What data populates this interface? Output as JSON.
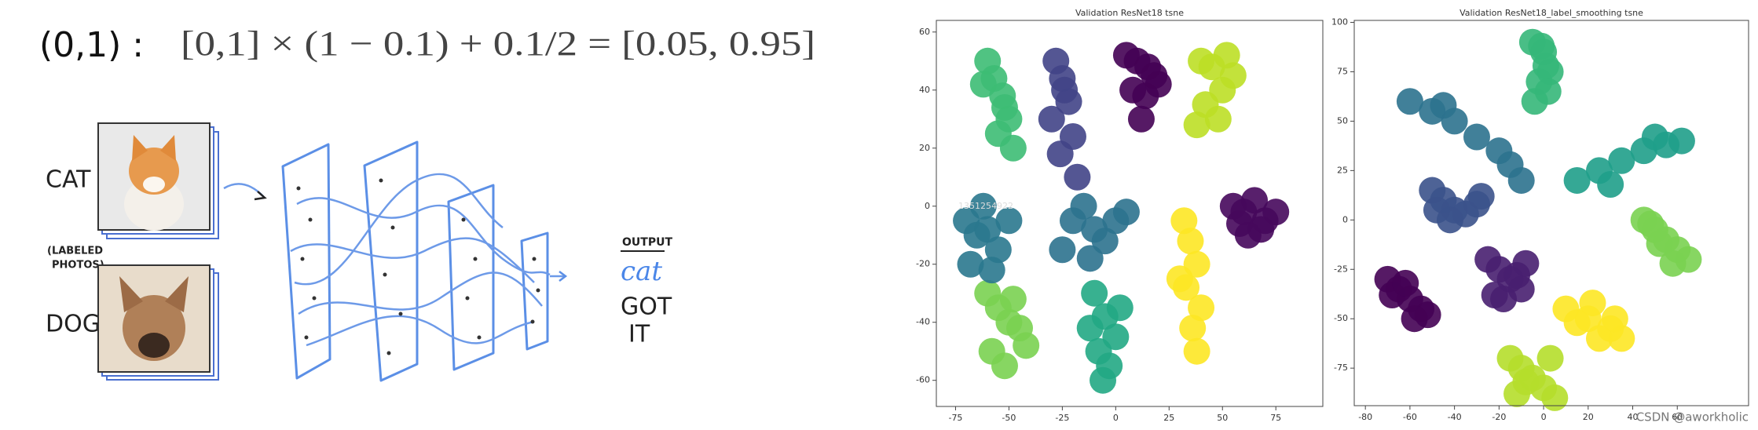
{
  "slide": {
    "prefix": "(0,1) :",
    "expression": "[0,1] × (1 − 0.1) + 0.1/2 = [0.05, 0.95]",
    "cat_label": "CAT",
    "photo_note": [
      "(LABELED",
      "PHOTOS)"
    ],
    "dog_label": "DOG",
    "output_heading": "OUTPUT",
    "output": "cat",
    "result": [
      "GOT",
      "IT"
    ]
  },
  "watermark": "CSDN @aworkholic",
  "chart_data": [
    {
      "type": "scatter",
      "title": "Validation ResNet18 tsne",
      "annotation": "1351254922",
      "xlim": [
        -84,
        97
      ],
      "ylim": [
        -69,
        64
      ],
      "xticks": [
        -75,
        -50,
        -25,
        0,
        25,
        50,
        75
      ],
      "yticks": [
        -60,
        -40,
        -20,
        0,
        20,
        40,
        60
      ],
      "series": [
        {
          "color": "#3dbc74",
          "x": [
            -60,
            -57,
            -53,
            -50,
            -55,
            -48,
            -62,
            -52
          ],
          "y": [
            50,
            44,
            38,
            30,
            25,
            20,
            42,
            34
          ]
        },
        {
          "color": "#414487",
          "x": [
            -28,
            -25,
            -22,
            -30,
            -20,
            -26,
            -24,
            -18
          ],
          "y": [
            50,
            44,
            36,
            30,
            24,
            18,
            40,
            10
          ]
        },
        {
          "color": "#440154",
          "x": [
            5,
            10,
            15,
            20,
            8,
            14,
            12,
            18
          ],
          "y": [
            52,
            50,
            48,
            42,
            40,
            38,
            30,
            45
          ]
        },
        {
          "color": "#bddf26",
          "x": [
            40,
            45,
            50,
            55,
            42,
            48,
            38,
            52
          ],
          "y": [
            50,
            48,
            40,
            45,
            35,
            30,
            28,
            52
          ]
        },
        {
          "color": "#46085c",
          "x": [
            55,
            60,
            65,
            70,
            75,
            62,
            68,
            58
          ],
          "y": [
            0,
            -2,
            2,
            -5,
            -2,
            -10,
            -8,
            -6
          ]
        },
        {
          "color": "#fde725",
          "x": [
            32,
            35,
            38,
            33,
            40,
            36,
            30,
            38
          ],
          "y": [
            -5,
            -12,
            -20,
            -28,
            -35,
            -42,
            -25,
            -50
          ]
        },
        {
          "color": "#7ad151",
          "x": [
            -60,
            -55,
            -50,
            -45,
            -42,
            -58,
            -52,
            -48
          ],
          "y": [
            -30,
            -35,
            -40,
            -42,
            -48,
            -50,
            -55,
            -32
          ]
        },
        {
          "color": "#22a884",
          "x": [
            -10,
            -5,
            0,
            -8,
            -3,
            -12,
            2,
            -6
          ],
          "y": [
            -30,
            -38,
            -45,
            -50,
            -55,
            -42,
            -35,
            -60
          ]
        },
        {
          "color": "#2a788e",
          "x": [
            -70,
            -65,
            -60,
            -55,
            -50,
            -68,
            -58,
            -62
          ],
          "y": [
            -5,
            -10,
            -8,
            -15,
            -5,
            -20,
            -22,
            0
          ]
        },
        {
          "color": "#2c728e",
          "x": [
            -20,
            -15,
            -10,
            -5,
            0,
            -12,
            -25,
            5
          ],
          "y": [
            -5,
            0,
            -8,
            -12,
            -5,
            -18,
            -15,
            -2
          ]
        }
      ]
    },
    {
      "type": "scatter",
      "title": "Validation ResNet18_label_smoothing tsne",
      "xlim": [
        -85,
        92
      ],
      "ylim": [
        -94,
        101
      ],
      "xticks": [
        -80,
        -60,
        -40,
        -20,
        0,
        20,
        40,
        60
      ],
      "yticks": [
        -75,
        -50,
        -25,
        0,
        25,
        50,
        75,
        100
      ],
      "series": [
        {
          "color": "#35b779",
          "x": [
            -5,
            0,
            3,
            -2,
            2,
            -4,
            1,
            -1
          ],
          "y": [
            90,
            85,
            75,
            70,
            65,
            60,
            78,
            88
          ]
        },
        {
          "color": "#2c728e",
          "x": [
            -60,
            -50,
            -40,
            -30,
            -20,
            -15,
            -10,
            -45
          ],
          "y": [
            60,
            55,
            50,
            42,
            35,
            28,
            20,
            58
          ]
        },
        {
          "color": "#1f9e89",
          "x": [
            15,
            25,
            35,
            45,
            55,
            62,
            30,
            50
          ],
          "y": [
            20,
            25,
            30,
            35,
            38,
            40,
            18,
            42
          ]
        },
        {
          "color": "#7ad151",
          "x": [
            45,
            50,
            55,
            60,
            65,
            52,
            58,
            48
          ],
          "y": [
            0,
            -5,
            -10,
            -15,
            -20,
            -12,
            -22,
            -2
          ]
        },
        {
          "color": "#3b528b",
          "x": [
            -50,
            -45,
            -40,
            -35,
            -30,
            -42,
            -28,
            -48
          ],
          "y": [
            15,
            10,
            5,
            3,
            8,
            0,
            12,
            5
          ]
        },
        {
          "color": "#440154",
          "x": [
            -70,
            -65,
            -60,
            -55,
            -52,
            -68,
            -58,
            -62
          ],
          "y": [
            -30,
            -35,
            -40,
            -45,
            -48,
            -38,
            -50,
            -32
          ]
        },
        {
          "color": "#481f70",
          "x": [
            -25,
            -20,
            -15,
            -10,
            -18,
            -12,
            -22,
            -8
          ],
          "y": [
            -20,
            -25,
            -30,
            -35,
            -40,
            -28,
            -38,
            -22
          ]
        },
        {
          "color": "#fde725",
          "x": [
            10,
            20,
            30,
            35,
            25,
            15,
            32,
            22
          ],
          "y": [
            -45,
            -50,
            -55,
            -60,
            -60,
            -52,
            -50,
            -42
          ]
        },
        {
          "color": "#b5de2b",
          "x": [
            -15,
            -10,
            -5,
            0,
            5,
            -8,
            -12,
            3
          ],
          "y": [
            -70,
            -75,
            -80,
            -85,
            -90,
            -82,
            -88,
            -70
          ]
        }
      ]
    }
  ]
}
